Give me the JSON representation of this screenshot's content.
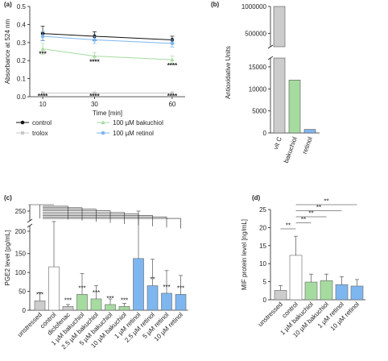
{
  "chart_data": [
    {
      "panel": "(a)",
      "type": "line",
      "xlabel": "Time [min]",
      "ylabel": "Absorbance at 524 nm",
      "xlim": [
        5,
        65
      ],
      "ylim": [
        0.0,
        0.5
      ],
      "x_ticks": [
        "10",
        "30",
        "60"
      ],
      "y_ticks": [
        "0.0",
        "0.1",
        "0.2",
        "0.3",
        "0.4",
        "0.5"
      ],
      "x": [
        10,
        30,
        60
      ],
      "series": [
        {
          "name": "control",
          "color": "#111111",
          "values": [
            0.35,
            0.335,
            0.315
          ],
          "err": [
            0.04,
            0.025,
            0.02
          ]
        },
        {
          "name": "trolox",
          "color": "#c8c8c8",
          "values": [
            0.02,
            0.02,
            0.02
          ],
          "err": [
            0.005,
            0.005,
            0.005
          ]
        },
        {
          "name": "100 µM bakuchiol",
          "color": "#a6dba0",
          "values": [
            0.265,
            0.225,
            0.205
          ],
          "err": [
            0.03,
            0.02,
            0.02
          ]
        },
        {
          "name": "100 µM retinol",
          "color": "#7eb6f0",
          "values": [
            0.335,
            0.315,
            0.295
          ],
          "err": [
            0.025,
            0.02,
            0.02
          ]
        }
      ],
      "annotations": [
        {
          "x": 10,
          "y": 0.225,
          "text": "***"
        },
        {
          "x": 30,
          "y": 0.18,
          "text": "****"
        },
        {
          "x": 60,
          "y": 0.16,
          "text": "****"
        },
        {
          "x": 10,
          "y": -0.01,
          "text": "****"
        },
        {
          "x": 30,
          "y": -0.01,
          "text": "****"
        },
        {
          "x": 60,
          "y": -0.01,
          "text": "****"
        }
      ]
    },
    {
      "panel": "(b)",
      "type": "bar",
      "ylabel": "Antioxidative Units",
      "categories": [
        "vit C",
        "bakuchiol",
        "retinol"
      ],
      "values": [
        1000000,
        12000,
        800
      ],
      "colors": [
        "#cccccc",
        "#a6dba0",
        "#7eb6f0"
      ],
      "y_ticks_lower": [
        "0",
        "5000",
        "10000",
        "15000"
      ],
      "y_ticks_upper": [
        "500000",
        "1000000"
      ]
    },
    {
      "panel": "(c)",
      "type": "bar",
      "ylabel": "PGE2 level [pg/mL]",
      "categories": [
        "unstressed",
        "control",
        "diclofenac",
        "1 µM bakuchiol",
        "2.5 µM bakuchiol",
        "5 µM bakuchiol",
        "10 µM bakuchiol",
        "1 µM retinol",
        "2.5 µM retinol",
        "5 µM retinol",
        "10 µM retinol"
      ],
      "values": [
        25,
        115,
        10,
        42,
        30,
        15,
        10,
        137,
        65,
        45,
        42
      ],
      "err": [
        22,
        120,
        5,
        55,
        35,
        15,
        8,
        140,
        70,
        60,
        50
      ],
      "colors": [
        "#cccccc",
        "#ffffff",
        "#cccccc",
        "#a6dba0",
        "#a6dba0",
        "#a6dba0",
        "#a6dba0",
        "#7eb6f0",
        "#7eb6f0",
        "#7eb6f0",
        "#7eb6f0"
      ],
      "significance": [
        "***",
        "",
        "***",
        "***",
        "***",
        "***",
        "***",
        "",
        "**",
        "***",
        "***"
      ],
      "y_ticks": [
        "0",
        "50",
        "100",
        "150",
        "200",
        "250"
      ],
      "ylim": [
        0,
        270
      ]
    },
    {
      "panel": "(d)",
      "type": "bar",
      "ylabel": "MIF protein level [ng/mL]",
      "categories": [
        "unstressed",
        "control",
        "1 µM bakuchiol",
        "10 µM bakuchiol",
        "1 µM retinol",
        "10 µM retinol"
      ],
      "values": [
        2.6,
        12.3,
        4.9,
        5.3,
        4.2,
        3.8
      ],
      "err": [
        1.3,
        5.3,
        2.2,
        1.8,
        2.2,
        1.8
      ],
      "colors": [
        "#cccccc",
        "#ffffff",
        "#a6dba0",
        "#a6dba0",
        "#7eb6f0",
        "#7eb6f0"
      ],
      "brackets": [
        {
          "from": 0,
          "to": 1,
          "text": "**"
        },
        {
          "from": 1,
          "to": 2,
          "text": "**"
        },
        {
          "from": 1,
          "to": 3,
          "text": "**"
        },
        {
          "from": 1,
          "to": 4,
          "text": "**"
        },
        {
          "from": 1,
          "to": 5,
          "text": "**"
        }
      ],
      "y_ticks": [
        "0",
        "5",
        "10",
        "15",
        "20",
        "25"
      ],
      "ylim": [
        0,
        25
      ]
    }
  ]
}
